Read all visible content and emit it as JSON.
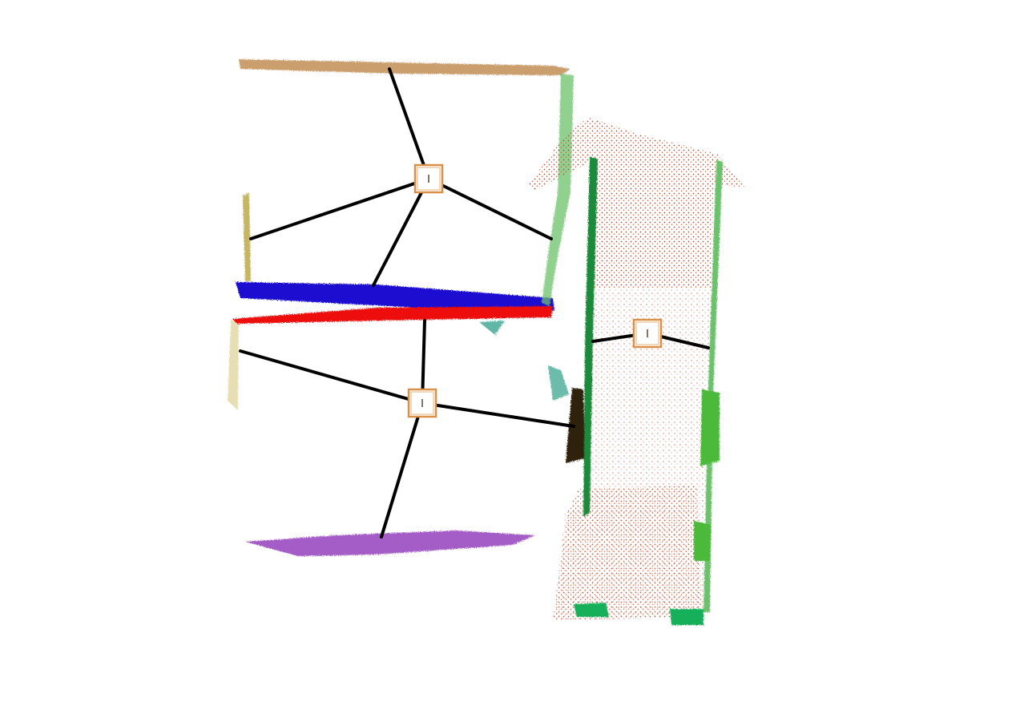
{
  "colors": {
    "ceiling": "#c99a66",
    "blue_shelf": "#1a10d0",
    "red_shelf": "#ee1010",
    "purple_floor": "#9b4cc0",
    "brick": "#b94a2c",
    "green_light": "#6cc26c",
    "green_dark": "#1f8a3a",
    "olive": "#b9a33a",
    "teal": "#3aa58f",
    "dark_block": "#2e2410",
    "edge": "#000000",
    "node_border": "#d9914a"
  },
  "nodes": [
    {
      "id": "upper",
      "label": "I"
    },
    {
      "id": "lower",
      "label": "I"
    },
    {
      "id": "right",
      "label": "I"
    }
  ]
}
